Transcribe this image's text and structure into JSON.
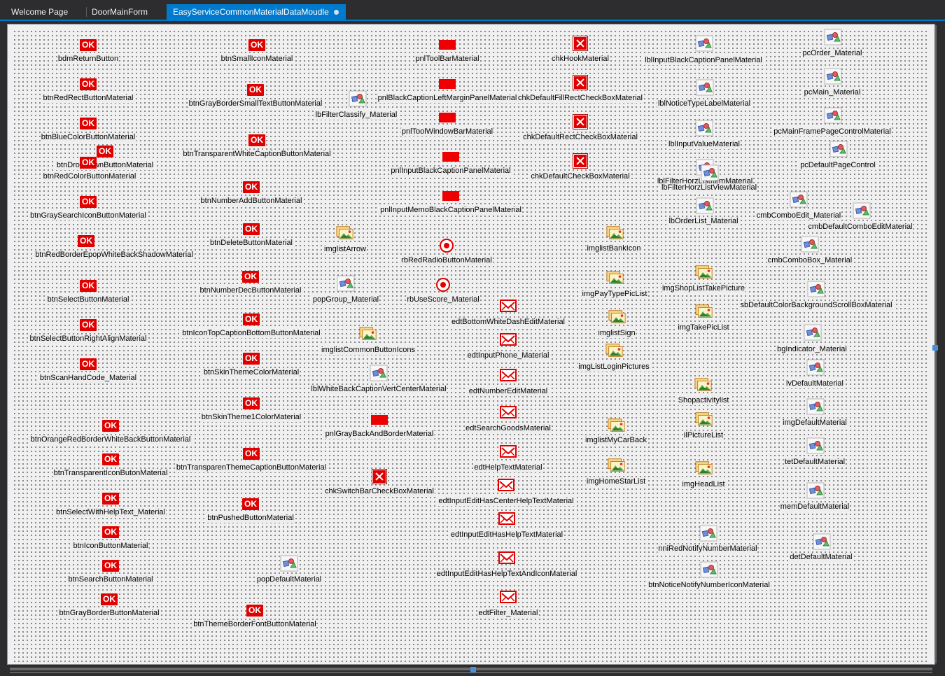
{
  "tabs": [
    {
      "label": "Welcome Page",
      "active": false
    },
    {
      "label": "DoorMainForm",
      "active": false
    },
    {
      "label": "EasyServiceCommonMaterialDataMoudle",
      "active": true,
      "modified": true
    }
  ],
  "colors": {
    "accent": "#007acc",
    "material_red": "#e00000",
    "designer_bg": "#f0f0f0"
  },
  "components": [
    {
      "name": "bdmReturnButton",
      "type": "button",
      "icon_text": "OK"
    },
    {
      "name": "btnRedRectButtonMaterial",
      "type": "button",
      "icon_text": "OK"
    },
    {
      "name": "btnBlueColorButtonMaterial",
      "type": "button",
      "icon_text": "OK"
    },
    {
      "name": "btnDropDownButtonMaterial",
      "type": "button",
      "icon_text": "OK"
    },
    {
      "name": "btnRedColorButtonMaterial",
      "type": "button",
      "icon_text": "OK"
    },
    {
      "name": "btnGraySearchIconButtonMaterial",
      "type": "button",
      "icon_text": "OK"
    },
    {
      "name": "btnRedBorderEpopWhiteBackShadowMaterial",
      "type": "button",
      "icon_text": "OK"
    },
    {
      "name": "btnSelectButtonMaterial",
      "type": "button",
      "icon_text": "OK"
    },
    {
      "name": "btnSelectButtonRightAlignMaterial",
      "type": "button",
      "icon_text": "OK"
    },
    {
      "name": "btnScanHandCode_Material",
      "type": "button",
      "icon_text": "OK"
    },
    {
      "name": "btnOrangeRedBorderWhiteBackButtonMaterial",
      "type": "button",
      "icon_text": "OK"
    },
    {
      "name": "btnTransparentIconButonMaterial",
      "type": "button",
      "icon_text": "OK"
    },
    {
      "name": "btnSelectWithHelpText_Material",
      "type": "button",
      "icon_text": "OK"
    },
    {
      "name": "btnIconButtonMaterial",
      "type": "button",
      "icon_text": "OK"
    },
    {
      "name": "btnSearchButtonMaterial",
      "type": "button",
      "icon_text": "OK"
    },
    {
      "name": "btnGrayBorderButtonMaterial",
      "type": "button",
      "icon_text": "OK"
    },
    {
      "name": "btnSmallIconMaterial",
      "type": "button",
      "icon_text": "OK"
    },
    {
      "name": "btnGrayBorderSmallTextButtonMaterial",
      "type": "button",
      "icon_text": "OK"
    },
    {
      "name": "btnTransparentWhiteCaptionButtonMaterial",
      "type": "button",
      "icon_text": "OK"
    },
    {
      "name": "btnNumberAddButtonMaterial",
      "type": "button",
      "icon_text": "OK"
    },
    {
      "name": "btnDeleteButtonMaterial",
      "type": "button",
      "icon_text": "OK"
    },
    {
      "name": "btnNumberDecButtonMaterial",
      "type": "button",
      "icon_text": "OK"
    },
    {
      "name": "btnIconTopCaptionBottomButtonMaterial",
      "type": "button",
      "icon_text": "OK"
    },
    {
      "name": "btnSkinThemeColorMaterial",
      "type": "button",
      "icon_text": "OK"
    },
    {
      "name": "btnSkinTheme1ColorMaterial",
      "type": "button",
      "icon_text": "OK"
    },
    {
      "name": "btnTransparenThemeCaptionButtonMaterial",
      "type": "button",
      "icon_text": "OK"
    },
    {
      "name": "btnPushedButtonMaterial",
      "type": "button",
      "icon_text": "OK"
    },
    {
      "name": "btnThemeBorderFontButtonMaterial",
      "type": "button",
      "icon_text": "OK"
    },
    {
      "name": "lbFilterClassify_Material",
      "type": "generic"
    },
    {
      "name": "pnlToolBarMaterial",
      "type": "panel"
    },
    {
      "name": "pnlBlackCaptionLeftMarginPanelMaterial",
      "type": "panel"
    },
    {
      "name": "pnlToolWindowBarMaterial",
      "type": "panel"
    },
    {
      "name": "pnlInputBlackCaptionPanelMaterial",
      "type": "panel"
    },
    {
      "name": "pnlInputMemoBlackCaptionPanelMaterial",
      "type": "panel"
    },
    {
      "name": "imglistArrow",
      "type": "imagelist"
    },
    {
      "name": "rbRedRadioButtonMaterial",
      "type": "radio"
    },
    {
      "name": "popGroup_Material",
      "type": "generic"
    },
    {
      "name": "rbUseScore_Material",
      "type": "radio"
    },
    {
      "name": "imglistCommonButtonIcons",
      "type": "imagelist"
    },
    {
      "name": "lblWhiteBackCaptionVertCenterMaterial",
      "type": "generic"
    },
    {
      "name": "pnlGrayBackAndBorderMaterial",
      "type": "panel"
    },
    {
      "name": "chkSwitchBarCheckBoxMaterial",
      "type": "checkbox"
    },
    {
      "name": "popDefaultMaterial",
      "type": "generic"
    },
    {
      "name": "chkHookMaterial",
      "type": "checkbox"
    },
    {
      "name": "chkDefaultFillRectCheckBoxMaterial",
      "type": "checkbox"
    },
    {
      "name": "chkDefaultRectCheckBoxMaterial",
      "type": "checkbox"
    },
    {
      "name": "chkDefaultCheckBoxMaterial",
      "type": "checkbox"
    },
    {
      "name": "edtBottomWhiteDashEditMaterial",
      "type": "edit"
    },
    {
      "name": "edtInputPhone_Material",
      "type": "edit"
    },
    {
      "name": "edtNumberEditMaterial",
      "type": "edit"
    },
    {
      "name": "edtSearchGoodsMaterial",
      "type": "edit"
    },
    {
      "name": "edtHelpTextMaterial",
      "type": "edit"
    },
    {
      "name": "edtInputEditHasCenterHelpTextMaterial",
      "type": "edit"
    },
    {
      "name": "edtInputEditHasHelpTextMaterial",
      "type": "edit"
    },
    {
      "name": "edtInputEditHasHelpTextAndIconMaterial",
      "type": "edit"
    },
    {
      "name": "edtFilter_Material",
      "type": "edit"
    },
    {
      "name": "imglistBankIcon",
      "type": "imagelist"
    },
    {
      "name": "imgPayTypePicList",
      "type": "imagelist"
    },
    {
      "name": "imglistSign",
      "type": "imagelist"
    },
    {
      "name": "imgListLoginPictures",
      "type": "imagelist"
    },
    {
      "name": "imglistMyCarBack",
      "type": "imagelist"
    },
    {
      "name": "imgHomeStarList",
      "type": "imagelist"
    },
    {
      "name": "lblInputBlackCaptionPanelMaterial",
      "type": "generic"
    },
    {
      "name": "lblNoticeTypeLabelMaterial",
      "type": "generic"
    },
    {
      "name": "lblInputValueMaterial",
      "type": "generic"
    },
    {
      "name": "lblFilterHorzListItemMaterial",
      "type": "generic"
    },
    {
      "name": "lbFilterHorzListViewMaterial",
      "type": "generic"
    },
    {
      "name": "lbOrderList_Material",
      "type": "generic"
    },
    {
      "name": "imgShopListTakePicture",
      "type": "imagelist"
    },
    {
      "name": "imgTakePicList",
      "type": "imagelist"
    },
    {
      "name": "Shopactivitylist",
      "type": "imagelist"
    },
    {
      "name": "ilPictureList",
      "type": "imagelist"
    },
    {
      "name": "imgHeadList",
      "type": "imagelist"
    },
    {
      "name": "nniRedNotifyNumberMaterial",
      "type": "generic"
    },
    {
      "name": "btnNoticeNotifyNumberIconMaterial",
      "type": "generic"
    },
    {
      "name": "pcOrder_Material",
      "type": "generic"
    },
    {
      "name": "pcMain_Material",
      "type": "generic"
    },
    {
      "name": "pcMainFramePageControlMaterial",
      "type": "generic"
    },
    {
      "name": "pcDefaultPageControl",
      "type": "generic"
    },
    {
      "name": "cmbComboEdit_Material",
      "type": "generic"
    },
    {
      "name": "cmbDefaultComboEditMaterial",
      "type": "generic"
    },
    {
      "name": "cmbComboBox_Material",
      "type": "generic"
    },
    {
      "name": "sbDefaultColorBackgroundScrollBoxMaterial",
      "type": "generic"
    },
    {
      "name": "bgIndicator_Material",
      "type": "generic"
    },
    {
      "name": "lvDefaultMaterial",
      "type": "generic"
    },
    {
      "name": "imgDefaultMaterial",
      "type": "generic"
    },
    {
      "name": "tetDefaultMaterial",
      "type": "generic"
    },
    {
      "name": "memDefaultMaterial",
      "type": "generic"
    },
    {
      "name": "detDefaultMaterial",
      "type": "generic"
    }
  ]
}
